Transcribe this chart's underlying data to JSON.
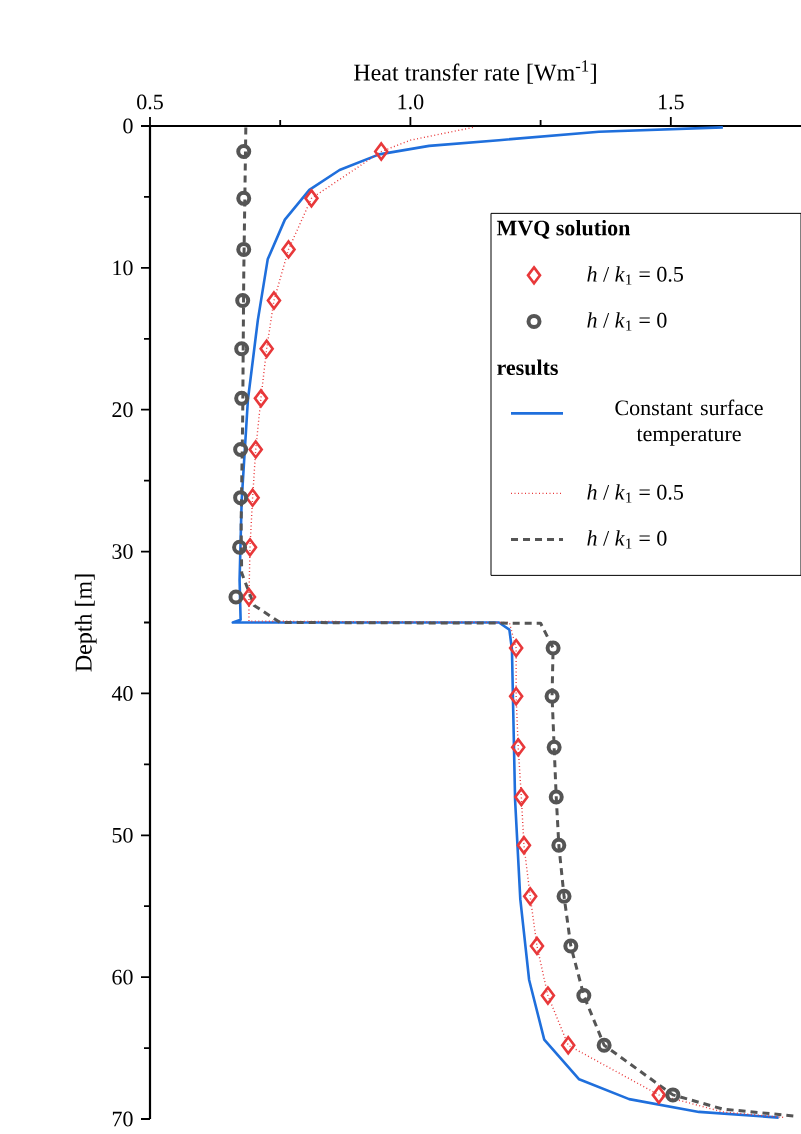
{
  "chart_data": {
    "type": "line",
    "xlabel": "Heat transfer rate [Wm$^{-1}$]",
    "ylabel": "Depth [m]",
    "xlim": [
      0.5,
      1.75
    ],
    "xticks": [
      {
        "value": 0.5,
        "label": "0.5"
      },
      {
        "value": 1.0,
        "label": "1.0"
      },
      {
        "value": 1.5,
        "label": "1.5"
      }
    ],
    "ylim": [
      70,
      0
    ],
    "yticks": [
      0,
      10,
      20,
      30,
      40,
      50,
      60,
      70
    ],
    "legend": "top right",
    "grid": false,
    "annotations": [
      "MVQ solution",
      "results"
    ],
    "series": [
      {
        "name": "*h* / *k*$_{1}$ = 0.5",
        "type": "scatter",
        "marker": "diamond",
        "color": "#e8383a",
        "x": [
          0.944,
          0.81,
          0.766,
          0.738,
          0.724,
          0.713,
          0.703,
          0.697,
          0.692,
          0.69,
          1.203,
          1.203,
          1.207,
          1.213,
          1.218,
          1.23,
          1.243,
          1.264,
          1.303,
          1.477
        ],
        "values": [
          1.8,
          5.1,
          8.7,
          12.3,
          15.7,
          19.2,
          22.8,
          26.2,
          29.7,
          33.2,
          36.8,
          40.2,
          43.8,
          47.3,
          50.7,
          54.3,
          57.8,
          61.3,
          64.8,
          68.3
        ]
      },
      {
        "name": "*h* / *k*$_{1}$ = 0",
        "type": "scatter",
        "marker": "circle",
        "color": "#555555",
        "x": [
          0.68,
          0.68,
          0.68,
          0.678,
          0.676,
          0.676,
          0.674,
          0.674,
          0.672,
          0.665,
          1.274,
          1.272,
          1.276,
          1.28,
          1.285,
          1.295,
          1.308,
          1.333,
          1.372,
          1.504
        ],
        "values": [
          1.8,
          5.1,
          8.7,
          12.3,
          15.7,
          19.2,
          22.8,
          26.2,
          29.7,
          33.2,
          36.8,
          40.2,
          43.8,
          47.3,
          50.7,
          54.3,
          57.8,
          61.3,
          64.8,
          68.3
        ]
      },
      {
        "name": "Constant surface temperature",
        "line_style": "solid",
        "color": "#1f6fdc",
        "x": [
          1.6,
          1.362,
          1.17,
          1.036,
          0.94,
          0.864,
          0.806,
          0.759,
          0.726,
          0.707,
          0.688,
          0.676,
          0.672,
          0.674,
          0.659,
          1.17,
          1.19,
          1.195,
          1.197,
          1.201,
          1.211,
          1.228,
          1.257,
          1.324,
          1.42,
          1.554,
          1.707
        ],
        "values": [
          0.1,
          0.4,
          1.0,
          1.4,
          2.0,
          3.1,
          4.5,
          6.6,
          9.4,
          13.7,
          19.3,
          26.4,
          32.0,
          34.8,
          35.0,
          35.0,
          35.5,
          36.9,
          40.5,
          47.5,
          54.5,
          60.2,
          64.4,
          67.2,
          68.6,
          69.5,
          69.9
        ]
      },
      {
        "name": "*h* / *k*$_{1}$ = 0.5",
        "line_style": "dotted",
        "color": "#e8383a",
        "x": [
          1.12,
          1.0,
          0.944,
          0.81,
          0.766,
          0.738,
          0.724,
          0.713,
          0.703,
          0.697,
          0.692,
          0.69,
          0.69,
          1.19,
          1.203,
          1.203,
          1.207,
          1.213,
          1.218,
          1.23,
          1.243,
          1.264,
          1.303,
          1.477,
          1.6,
          1.72
        ],
        "values": [
          0.1,
          1.0,
          1.8,
          5.1,
          8.7,
          12.3,
          15.7,
          19.2,
          22.8,
          26.2,
          29.7,
          33.2,
          34.9,
          35.0,
          36.8,
          40.2,
          43.8,
          47.3,
          50.7,
          54.3,
          57.8,
          61.3,
          64.8,
          68.3,
          69.5,
          69.9
        ]
      },
      {
        "name": "*h* / *k*$_{1}$ = 0",
        "line_style": "dashed",
        "color": "#555555",
        "x": [
          0.684,
          0.68,
          0.678,
          0.675,
          0.676,
          0.7,
          0.75,
          1.25,
          1.274,
          1.272,
          1.276,
          1.28,
          1.285,
          1.295,
          1.308,
          1.333,
          1.372,
          1.504,
          1.6,
          1.74
        ],
        "values": [
          0.1,
          10.5,
          20.5,
          28.0,
          31.5,
          33.8,
          35.0,
          35.05,
          36.8,
          40.2,
          43.8,
          47.3,
          50.7,
          54.3,
          57.8,
          61.3,
          64.8,
          68.3,
          69.3,
          69.8
        ]
      }
    ]
  }
}
